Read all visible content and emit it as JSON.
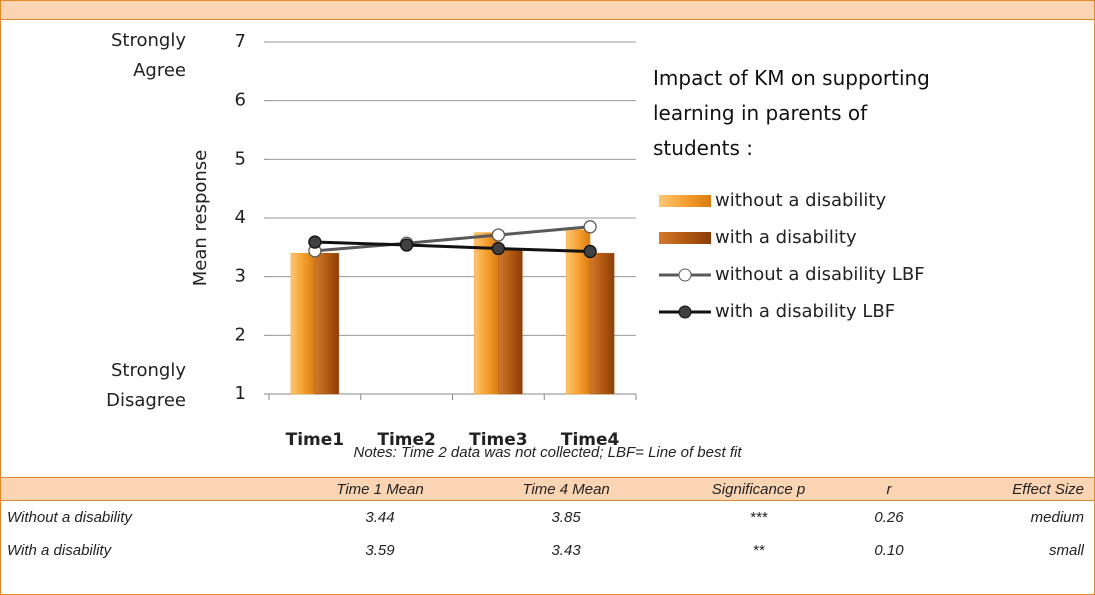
{
  "chart_data": {
    "type": "bar",
    "y_axis_label": "Mean response",
    "y_top_label": "Strongly Agree",
    "y_bottom_label": "Strongly Disagree",
    "legend_title": "Impact of KM on supporting learning in parents of students :",
    "categories": [
      "Time1",
      "Time2",
      "Time3",
      "Time4"
    ],
    "series": [
      {
        "name": "without a disability",
        "type": "bar",
        "color": "#f5a030",
        "values": [
          3.4,
          null,
          3.75,
          3.8
        ]
      },
      {
        "name": "with a disability",
        "type": "bar",
        "color": "#b35a12",
        "values": [
          3.4,
          null,
          3.45,
          3.4
        ]
      },
      {
        "name": "without a disability LBF",
        "type": "line",
        "color": "#595959",
        "marker": "#ffffff",
        "values": [
          3.44,
          3.57,
          3.71,
          3.85
        ]
      },
      {
        "name": "with a disability LBF",
        "type": "line",
        "color": "#111111",
        "marker": "#404040",
        "values": [
          3.59,
          3.54,
          3.48,
          3.43
        ]
      }
    ],
    "ylim": [
      1,
      7
    ],
    "yticks": [
      1,
      2,
      3,
      4,
      5,
      6,
      7
    ],
    "grid": true,
    "notes": "Notes: Time 2 data was not collected; LBF= Line of best fit"
  },
  "table": {
    "header": [
      "",
      "Time 1 Mean",
      "Time 4 Mean",
      "Significance p",
      "r",
      "Effect Size"
    ],
    "rows": [
      [
        "Without a disability",
        "3.44",
        "3.85",
        "***",
        "0.26",
        "medium"
      ],
      [
        "With a disability",
        "3.59",
        "3.43",
        "**",
        "0.10",
        "small"
      ]
    ]
  }
}
